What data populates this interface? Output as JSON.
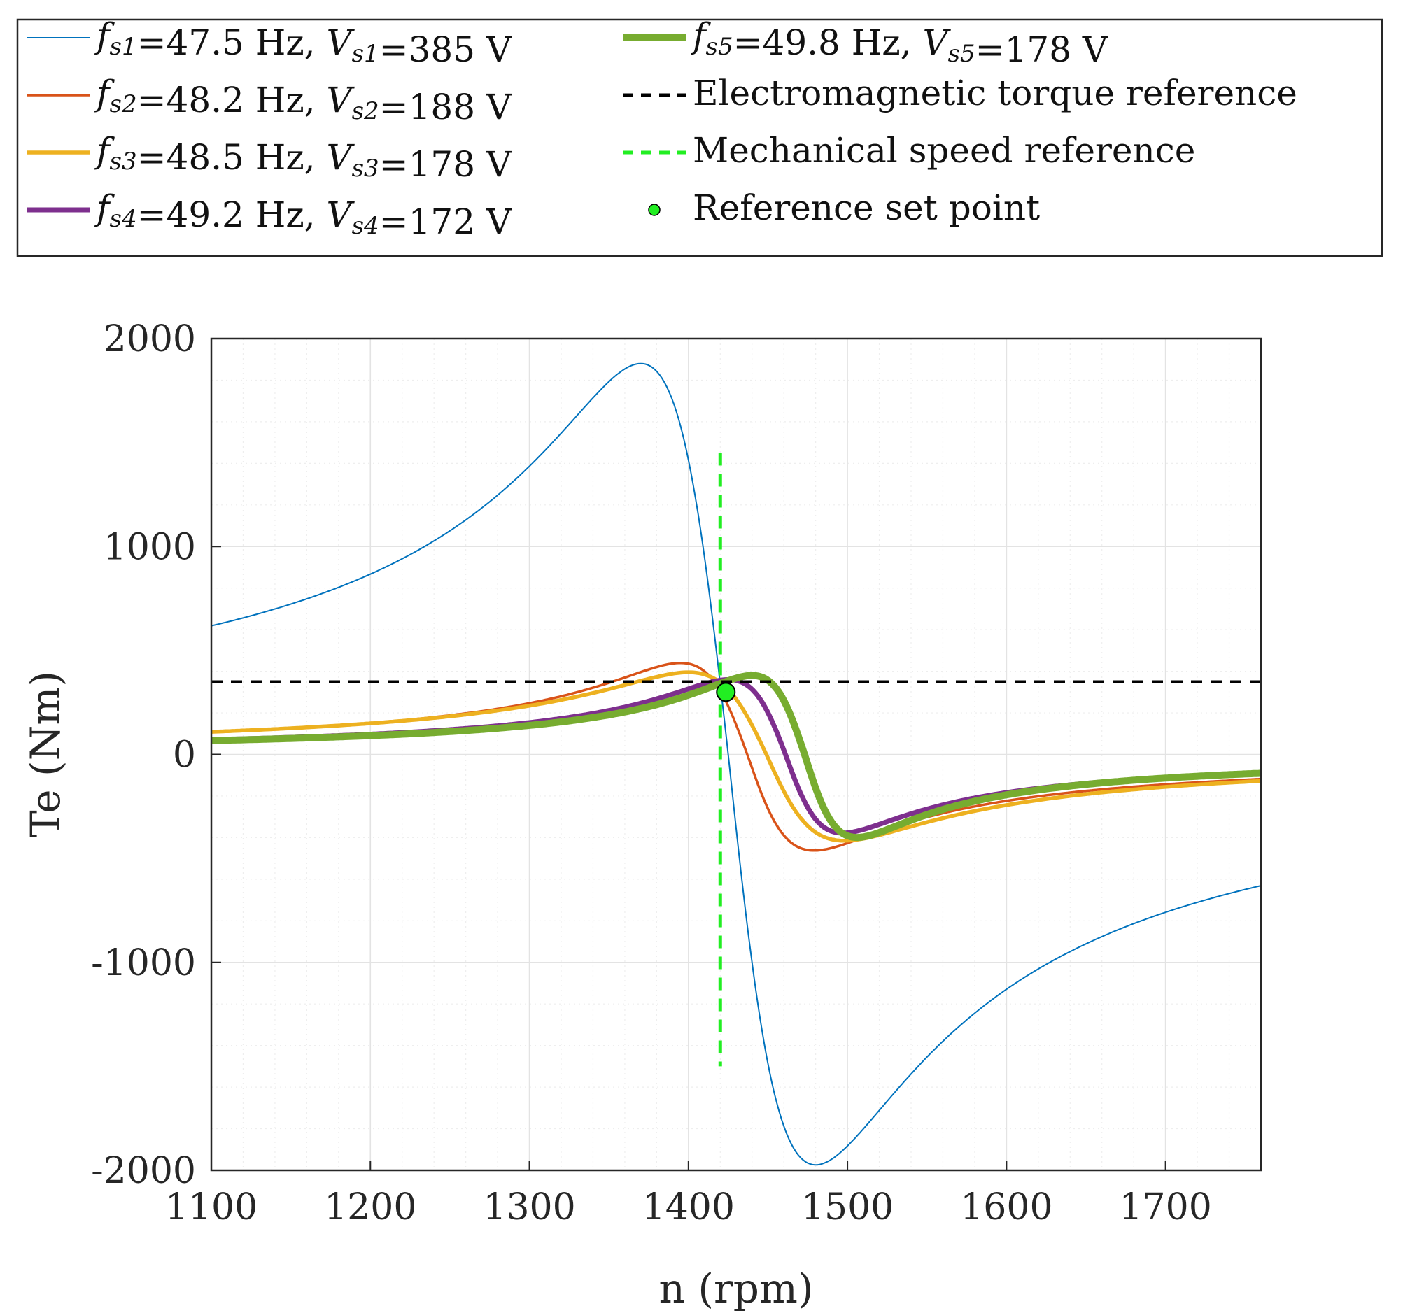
{
  "chart_data": {
    "type": "line",
    "title": "",
    "xlabel": "n (rpm)",
    "ylabel": "Te (Nm)",
    "xlim": [
      1100,
      1760
    ],
    "ylim": [
      -2000,
      2000
    ],
    "grid": true,
    "minor_grid": true,
    "xticks": [
      1100,
      1200,
      1300,
      1400,
      1500,
      1600,
      1700
    ],
    "xtick_labels": [
      "1100",
      "1200",
      "1300",
      "1400",
      "1500",
      "1600",
      "1700"
    ],
    "yticks": [
      2000,
      1000,
      0,
      -1000,
      -2000
    ],
    "ytick_labels": [
      "2000",
      "1000",
      "0",
      "-1000",
      "-2000"
    ],
    "legend_placement": "top, outside plot",
    "series": [
      {
        "name": "fs1=47.5 Hz, Vs1=385 V",
        "label_f": "f",
        "label_fsub": "s1",
        "label_fval": "=47.5 Hz, ",
        "label_v": "V",
        "label_vsub": "s1",
        "label_vval": "=385 V",
        "color": "#0072BD",
        "style": "solid",
        "weight": "thin",
        "x_peak": 1370,
        "t_peak": 1880
      },
      {
        "name": "fs2=48.2 Hz, Vs2=188 V",
        "label_f": "f",
        "label_fsub": "s2",
        "label_fval": "=48.2 Hz, ",
        "label_v": "V",
        "label_vsub": "s2",
        "label_vval": "=188 V",
        "color": "#D95319",
        "style": "solid",
        "weight": "medium",
        "x_peak": 1395,
        "t_peak": 440
      },
      {
        "name": "fs3=48.5 Hz, Vs3=178 V",
        "label_f": "f",
        "label_fsub": "s3",
        "label_fval": "=48.5 Hz, ",
        "label_v": "V",
        "label_vsub": "s3",
        "label_vval": "=178 V",
        "color": "#EDB120",
        "style": "solid",
        "weight": "thick",
        "x_peak": 1400,
        "t_peak": 395
      },
      {
        "name": "fs4=49.2 Hz, Vs4=172 V",
        "label_f": "f",
        "label_fsub": "s4",
        "label_fval": "=49.2 Hz, ",
        "label_v": "V",
        "label_vsub": "s4",
        "label_vval": "=172 V",
        "color": "#7E2F8E",
        "style": "solid",
        "weight": "thicker",
        "x_peak": 1425,
        "t_peak": 360
      },
      {
        "name": "fs5=49.8 Hz, Vs5=178 V",
        "label_f": "f",
        "label_fsub": "s5",
        "label_fval": "=49.8 Hz, ",
        "label_v": "V",
        "label_vsub": "s5",
        "label_vval": "=178 V",
        "color": "#77AC30",
        "style": "solid",
        "weight": "thickest",
        "x_peak": 1440,
        "t_peak": 380
      }
    ],
    "references": [
      {
        "name": "Electromagnetic torque reference",
        "label": "Electromagnetic torque reference",
        "color": "#000000",
        "style": "dashed",
        "orientation": "horizontal",
        "value": 350
      },
      {
        "name": "Mechanical speed reference",
        "label": "Mechanical speed reference",
        "color": "#22EE22",
        "style": "dashed",
        "orientation": "vertical",
        "value": 1420,
        "range": [
          -1500,
          1450
        ]
      }
    ],
    "set_point": {
      "name": "Reference set point",
      "label": "Reference set point",
      "x": 1420,
      "y": 300,
      "color": "#22EE22"
    }
  }
}
